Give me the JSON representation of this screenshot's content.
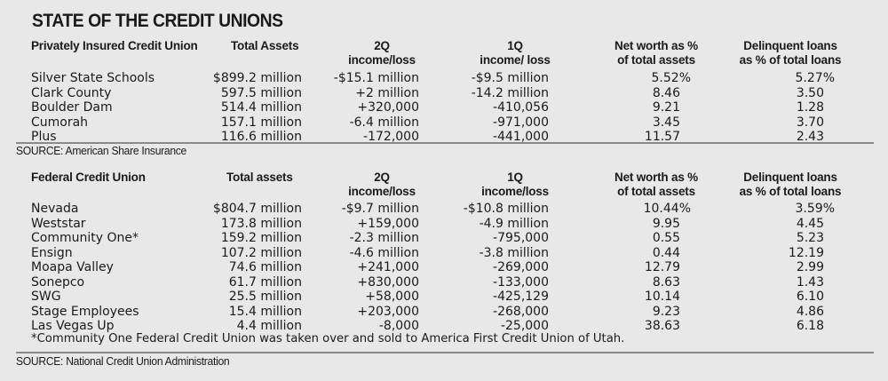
{
  "title": "STATE OF THE CREDIT UNIONS",
  "private": {
    "headers": {
      "name": "Privately Insured Credit Union",
      "assets": "Total Assets",
      "q2_line1": "2Q",
      "q2_line2": "income/loss",
      "q1_line1": "1Q",
      "q1_line2": "income/ loss",
      "nw_line1": "Net worth as %",
      "nw_line2": "of total assets",
      "dl_line1": "Delinquent loans",
      "dl_line2": "as % of total loans"
    },
    "rows": [
      {
        "name": "Silver State Schools",
        "assets": "$899.2 million",
        "q2": "-$15.1 million",
        "q1": "-$9.5 million",
        "nw": "5.52%",
        "dl": "5.27%"
      },
      {
        "name": "Clark County",
        "assets": "597.5 million",
        "q2": "+2 million",
        "q1": "-14.2 million",
        "nw": "8.46",
        "dl": "3.50"
      },
      {
        "name": "Boulder Dam",
        "assets": "514.4 million",
        "q2": "+320,000",
        "q1": "-410,056",
        "nw": "9.21",
        "dl": "1.28"
      },
      {
        "name": "Cumorah",
        "assets": "157.1 million",
        "q2": "-6.4 million",
        "q1": "-971,000",
        "nw": "3.45",
        "dl": "3.70"
      },
      {
        "name": "Plus",
        "assets": "116.6 million",
        "q2": "-172,000",
        "q1": "-441,000",
        "nw": "11.57",
        "dl": "2.43"
      }
    ],
    "source": "SOURCE: American Share Insurance"
  },
  "federal": {
    "headers": {
      "name": "Federal Credit Union",
      "assets": "Total assets",
      "q2_line1": "2Q",
      "q2_line2": "income/loss",
      "q1_line1": "1Q",
      "q1_line2": "income/loss",
      "nw_line1": "Net worth as %",
      "nw_line2": "of total assets",
      "dl_line1": "Delinquent loans",
      "dl_line2": "as % of total loans"
    },
    "rows": [
      {
        "name": "Nevada",
        "assets": "$804.7 million",
        "q2": "-$9.7 million",
        "q1": "-$10.8 million",
        "nw": "10.44%",
        "dl": "3.59%"
      },
      {
        "name": "Weststar",
        "assets": "173.8 million",
        "q2": "+159,000",
        "q1": "-4.9 million",
        "nw": "9.95",
        "dl": "4.45"
      },
      {
        "name": "Community One*",
        "assets": "159.2 million",
        "q2": "-2.3 million",
        "q1": "-795,000",
        "nw": "0.55",
        "dl": "5.23"
      },
      {
        "name": "Ensign",
        "assets": "107.2 million",
        "q2": "-4.6 million",
        "q1": "-3.8 million",
        "nw": "0.44",
        "dl": "12.19"
      },
      {
        "name": "Moapa Valley",
        "assets": "74.6 million",
        "q2": "+241,000",
        "q1": "-269,000",
        "nw": "12.79",
        "dl": "2.99"
      },
      {
        "name": "Sonepco",
        "assets": "61.7 million",
        "q2": "+830,000",
        "q1": "-133,000",
        "nw": "8.63",
        "dl": "1.43"
      },
      {
        "name": "SWG",
        "assets": "25.5 million",
        "q2": "+58,000",
        "q1": "-425,129",
        "nw": "10.14",
        "dl": "6.10"
      },
      {
        "name": "Stage Employees",
        "assets": "15.4 million",
        "q2": "+203,000",
        "q1": "-268,000",
        "nw": "9.23",
        "dl": "4.86"
      },
      {
        "name": "Las Vegas Up",
        "assets": "4.4 million",
        "q2": "-8,000",
        "q1": "-25,000",
        "nw": "38.63",
        "dl": "6.18"
      }
    ],
    "note": "*Community One Federal Credit Union was taken over and sold to America First Credit Union of Utah.",
    "source": "SOURCE: National Credit Union Administration"
  }
}
